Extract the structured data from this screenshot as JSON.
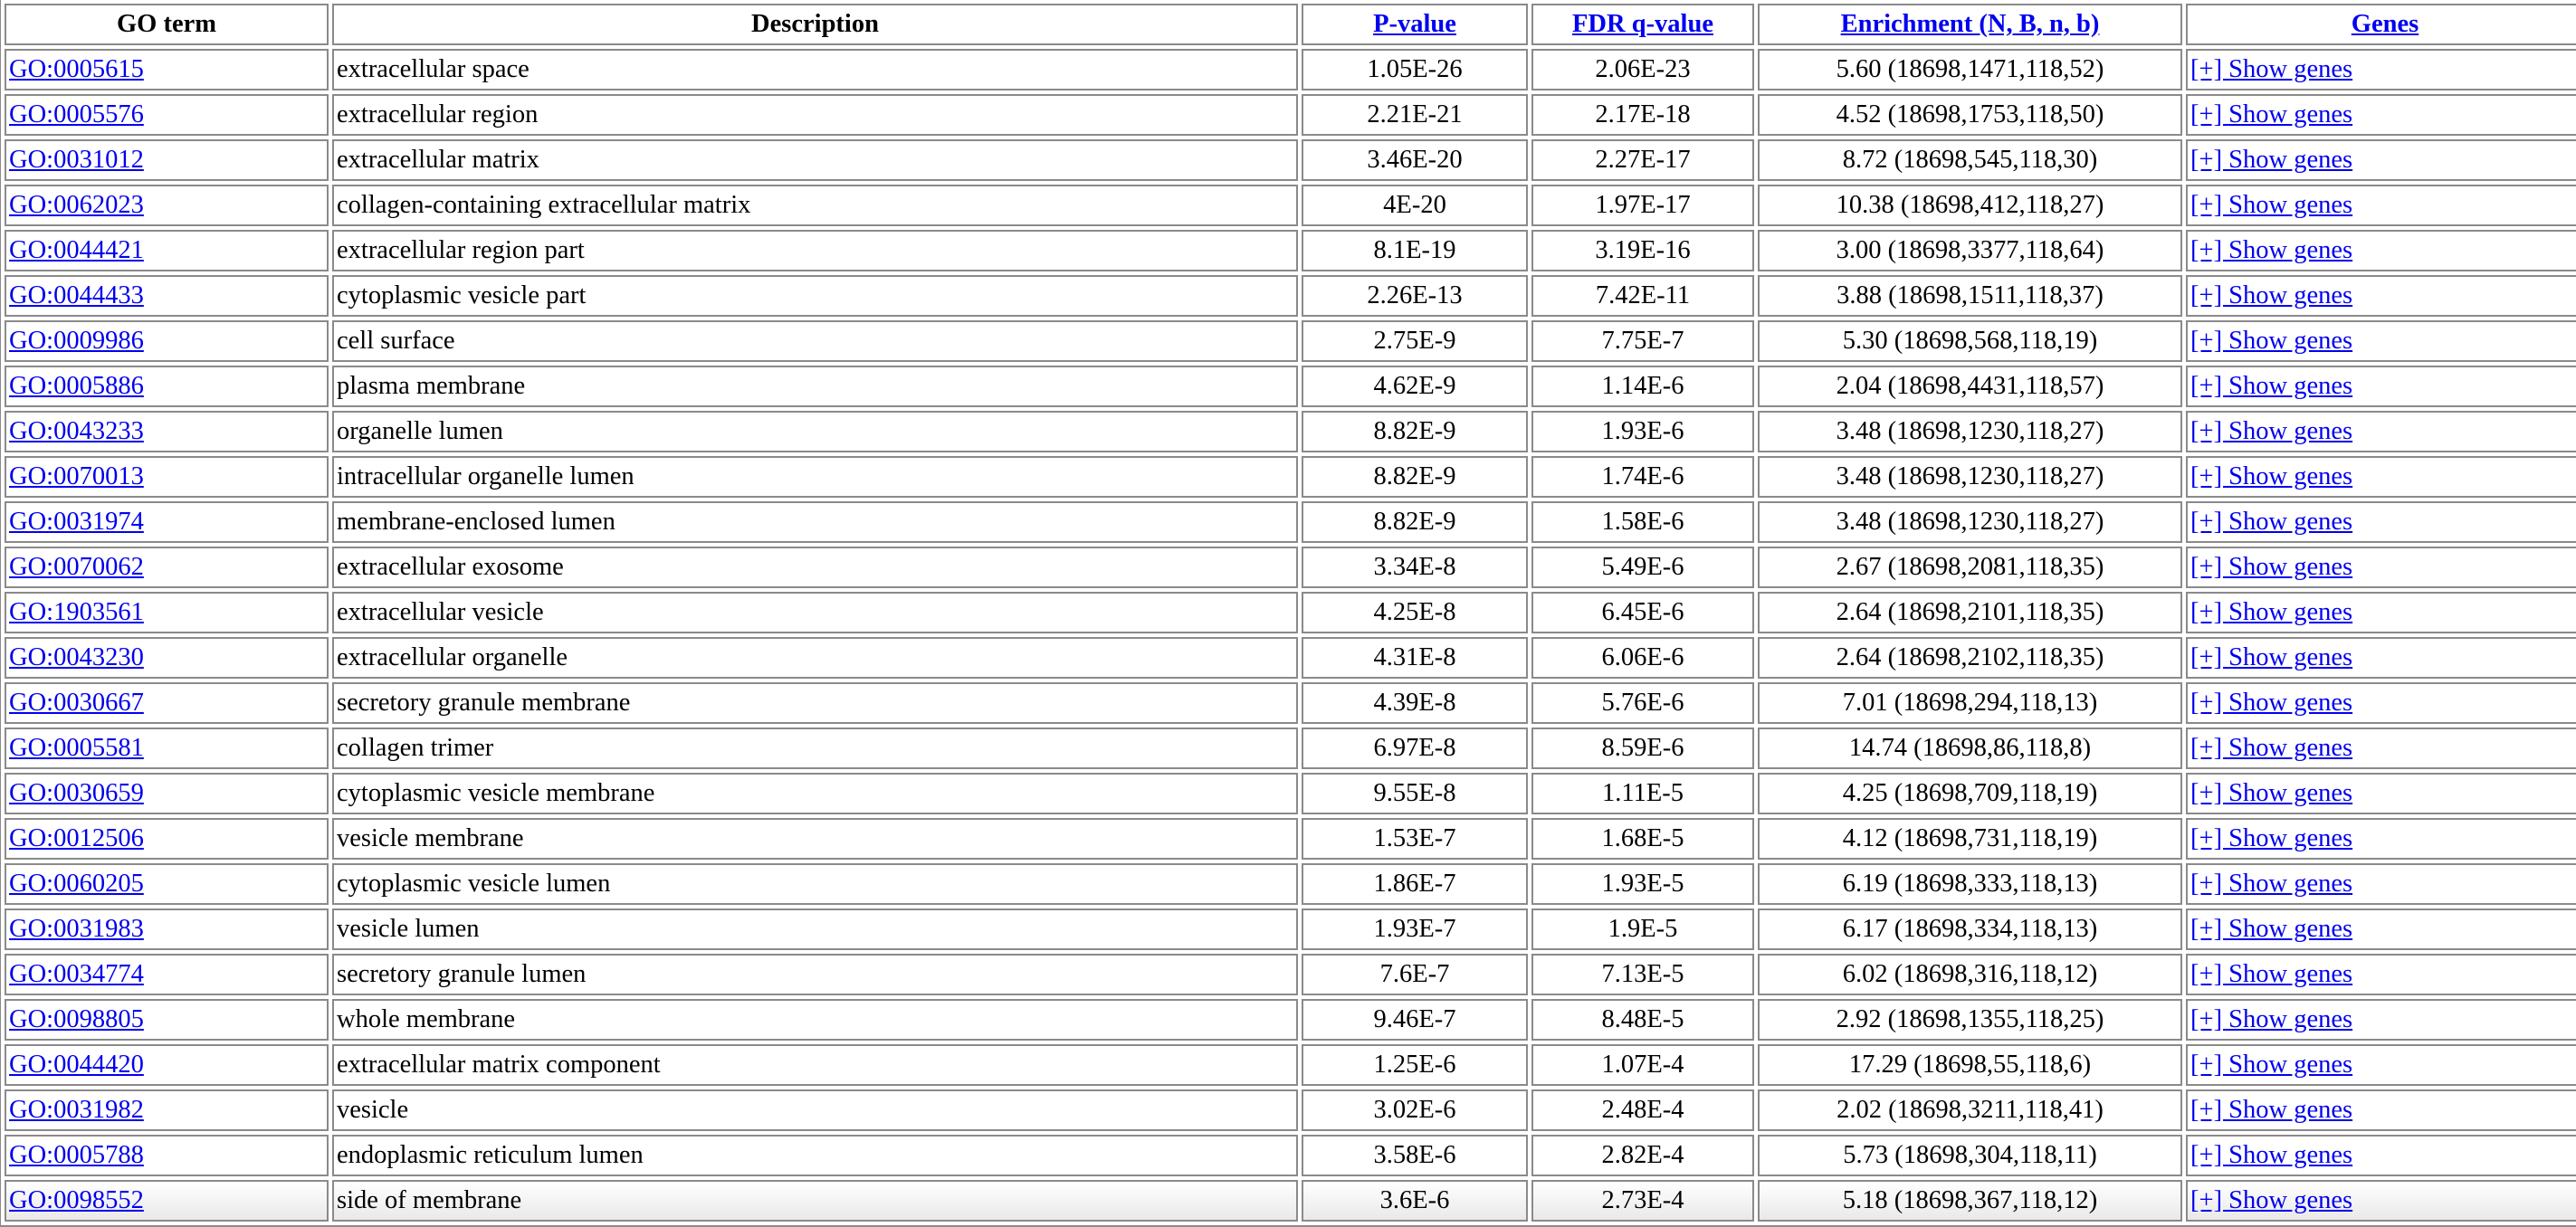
{
  "table": {
    "headers": {
      "go_term": "GO term",
      "description": "Description",
      "p_value": "P-value",
      "fdr": "FDR q-value",
      "enrichment": "Enrichment (N, B, n, b)",
      "genes": "Genes"
    },
    "link_color": "#0000ee",
    "rows": [
      {
        "go": "GO:0005615",
        "desc": "extracellular space",
        "p": "1.05E-26",
        "fdr": "2.06E-23",
        "enr": "5.60 (18698,1471,118,52)",
        "genes": "[+] Show genes"
      },
      {
        "go": "GO:0005576",
        "desc": "extracellular region",
        "p": "2.21E-21",
        "fdr": "2.17E-18",
        "enr": "4.52 (18698,1753,118,50)",
        "genes": "[+] Show genes"
      },
      {
        "go": "GO:0031012",
        "desc": "extracellular matrix",
        "p": "3.46E-20",
        "fdr": "2.27E-17",
        "enr": "8.72 (18698,545,118,30)",
        "genes": "[+] Show genes"
      },
      {
        "go": "GO:0062023",
        "desc": "collagen-containing extracellular matrix",
        "p": "4E-20",
        "fdr": "1.97E-17",
        "enr": "10.38 (18698,412,118,27)",
        "genes": "[+] Show genes"
      },
      {
        "go": "GO:0044421",
        "desc": "extracellular region part",
        "p": "8.1E-19",
        "fdr": "3.19E-16",
        "enr": "3.00 (18698,3377,118,64)",
        "genes": "[+] Show genes"
      },
      {
        "go": "GO:0044433",
        "desc": "cytoplasmic vesicle part",
        "p": "2.26E-13",
        "fdr": "7.42E-11",
        "enr": "3.88 (18698,1511,118,37)",
        "genes": "[+] Show genes"
      },
      {
        "go": "GO:0009986",
        "desc": "cell surface",
        "p": "2.75E-9",
        "fdr": "7.75E-7",
        "enr": "5.30 (18698,568,118,19)",
        "genes": "[+] Show genes"
      },
      {
        "go": "GO:0005886",
        "desc": "plasma membrane",
        "p": "4.62E-9",
        "fdr": "1.14E-6",
        "enr": "2.04 (18698,4431,118,57)",
        "genes": "[+] Show genes"
      },
      {
        "go": "GO:0043233",
        "desc": "organelle lumen",
        "p": "8.82E-9",
        "fdr": "1.93E-6",
        "enr": "3.48 (18698,1230,118,27)",
        "genes": "[+] Show genes"
      },
      {
        "go": "GO:0070013",
        "desc": "intracellular organelle lumen",
        "p": "8.82E-9",
        "fdr": "1.74E-6",
        "enr": "3.48 (18698,1230,118,27)",
        "genes": "[+] Show genes"
      },
      {
        "go": "GO:0031974",
        "desc": "membrane-enclosed lumen",
        "p": "8.82E-9",
        "fdr": "1.58E-6",
        "enr": "3.48 (18698,1230,118,27)",
        "genes": "[+] Show genes"
      },
      {
        "go": "GO:0070062",
        "desc": "extracellular exosome",
        "p": "3.34E-8",
        "fdr": "5.49E-6",
        "enr": "2.67 (18698,2081,118,35)",
        "genes": "[+] Show genes"
      },
      {
        "go": "GO:1903561",
        "desc": "extracellular vesicle",
        "p": "4.25E-8",
        "fdr": "6.45E-6",
        "enr": "2.64 (18698,2101,118,35)",
        "genes": "[+] Show genes"
      },
      {
        "go": "GO:0043230",
        "desc": "extracellular organelle",
        "p": "4.31E-8",
        "fdr": "6.06E-6",
        "enr": "2.64 (18698,2102,118,35)",
        "genes": "[+] Show genes"
      },
      {
        "go": "GO:0030667",
        "desc": "secretory granule membrane",
        "p": "4.39E-8",
        "fdr": "5.76E-6",
        "enr": "7.01 (18698,294,118,13)",
        "genes": "[+] Show genes"
      },
      {
        "go": "GO:0005581",
        "desc": "collagen trimer",
        "p": "6.97E-8",
        "fdr": "8.59E-6",
        "enr": "14.74 (18698,86,118,8)",
        "genes": "[+] Show genes"
      },
      {
        "go": "GO:0030659",
        "desc": "cytoplasmic vesicle membrane",
        "p": "9.55E-8",
        "fdr": "1.11E-5",
        "enr": "4.25 (18698,709,118,19)",
        "genes": "[+] Show genes"
      },
      {
        "go": "GO:0012506",
        "desc": "vesicle membrane",
        "p": "1.53E-7",
        "fdr": "1.68E-5",
        "enr": "4.12 (18698,731,118,19)",
        "genes": "[+] Show genes"
      },
      {
        "go": "GO:0060205",
        "desc": "cytoplasmic vesicle lumen",
        "p": "1.86E-7",
        "fdr": "1.93E-5",
        "enr": "6.19 (18698,333,118,13)",
        "genes": "[+] Show genes"
      },
      {
        "go": "GO:0031983",
        "desc": "vesicle lumen",
        "p": "1.93E-7",
        "fdr": "1.9E-5",
        "enr": "6.17 (18698,334,118,13)",
        "genes": "[+] Show genes"
      },
      {
        "go": "GO:0034774",
        "desc": "secretory granule lumen",
        "p": "7.6E-7",
        "fdr": "7.13E-5",
        "enr": "6.02 (18698,316,118,12)",
        "genes": "[+] Show genes"
      },
      {
        "go": "GO:0098805",
        "desc": "whole membrane",
        "p": "9.46E-7",
        "fdr": "8.48E-5",
        "enr": "2.92 (18698,1355,118,25)",
        "genes": "[+] Show genes"
      },
      {
        "go": "GO:0044420",
        "desc": "extracellular matrix component",
        "p": "1.25E-6",
        "fdr": "1.07E-4",
        "enr": "17.29 (18698,55,118,6)",
        "genes": "[+] Show genes"
      },
      {
        "go": "GO:0031982",
        "desc": "vesicle",
        "p": "3.02E-6",
        "fdr": "2.48E-4",
        "enr": "2.02 (18698,3211,118,41)",
        "genes": "[+] Show genes"
      },
      {
        "go": "GO:0005788",
        "desc": "endoplasmic reticulum lumen",
        "p": "3.58E-6",
        "fdr": "2.82E-4",
        "enr": "5.73 (18698,304,118,11)",
        "genes": "[+] Show genes"
      },
      {
        "go": "GO:0098552",
        "desc": "side of membrane",
        "p": "3.6E-6",
        "fdr": "2.73E-4",
        "enr": "5.18 (18698,367,118,12)",
        "genes": "[+] Show genes"
      }
    ]
  }
}
